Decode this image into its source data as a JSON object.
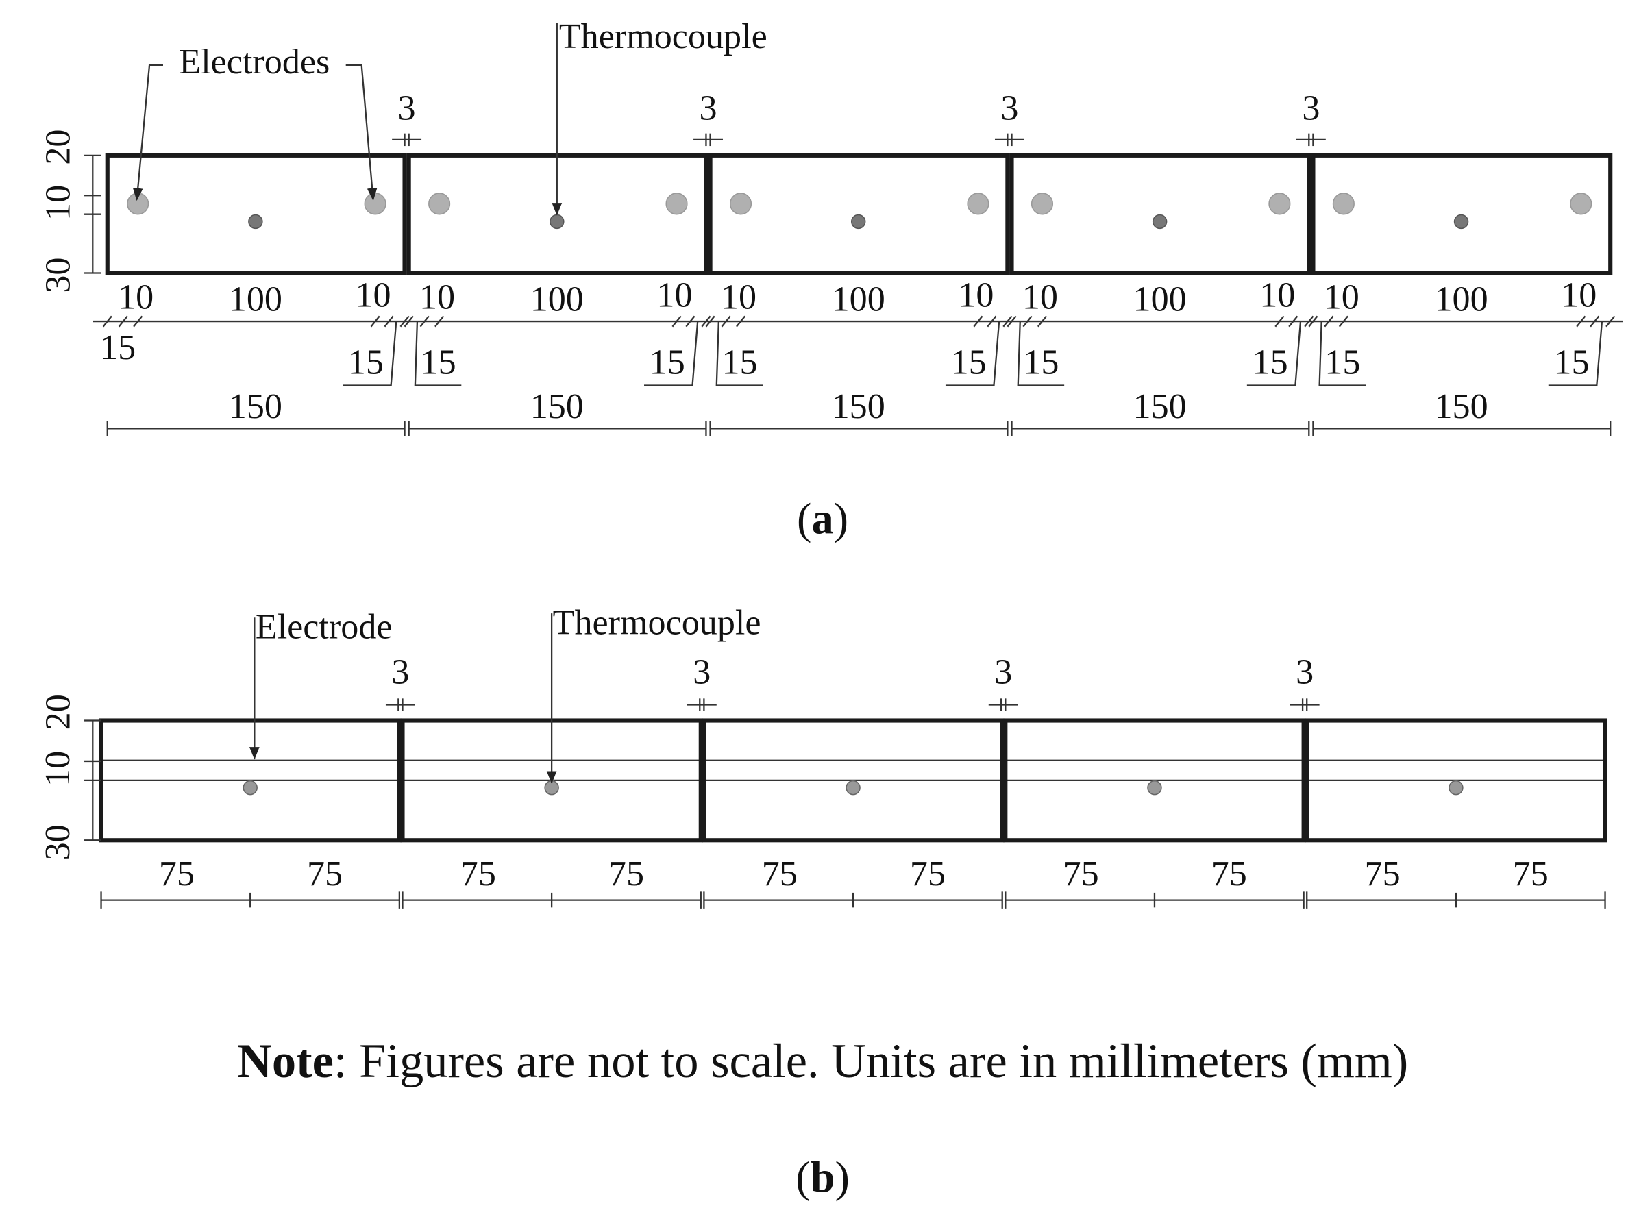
{
  "panel_a": {
    "callouts": {
      "electrodes": "Electrodes",
      "thermocouple": "Thermocouple"
    },
    "height_dims": [
      20,
      10,
      30
    ],
    "gap_dims": [
      3,
      3,
      3,
      3
    ],
    "segments": [
      {
        "inner": [
          10,
          100,
          10
        ],
        "edge": [
          15,
          15
        ],
        "total": 150
      },
      {
        "inner": [
          10,
          100,
          10
        ],
        "edge": [
          15,
          15
        ],
        "total": 150
      },
      {
        "inner": [
          10,
          100,
          10
        ],
        "edge": [
          15,
          15
        ],
        "total": 150
      },
      {
        "inner": [
          10,
          100,
          10
        ],
        "edge": [
          15,
          15
        ],
        "total": 150
      },
      {
        "inner": [
          10,
          100,
          10
        ],
        "edge": [
          15,
          15
        ],
        "total": 150
      }
    ],
    "caption": [
      "(",
      "a",
      ")"
    ]
  },
  "panel_b": {
    "callouts": {
      "electrode": "Electrode",
      "thermocouple": "Thermocouple"
    },
    "height_dims": [
      20,
      10,
      30
    ],
    "gap_dims": [
      3,
      3,
      3,
      3
    ],
    "segments": [
      {
        "halves": [
          75,
          75
        ]
      },
      {
        "halves": [
          75,
          75
        ]
      },
      {
        "halves": [
          75,
          75
        ]
      },
      {
        "halves": [
          75,
          75
        ]
      },
      {
        "halves": [
          75,
          75
        ]
      }
    ],
    "caption": [
      "(",
      "b",
      ")"
    ]
  },
  "note": {
    "label": "Note",
    "text": ": Figures are not to scale. Units are in millimeters (mm)"
  }
}
